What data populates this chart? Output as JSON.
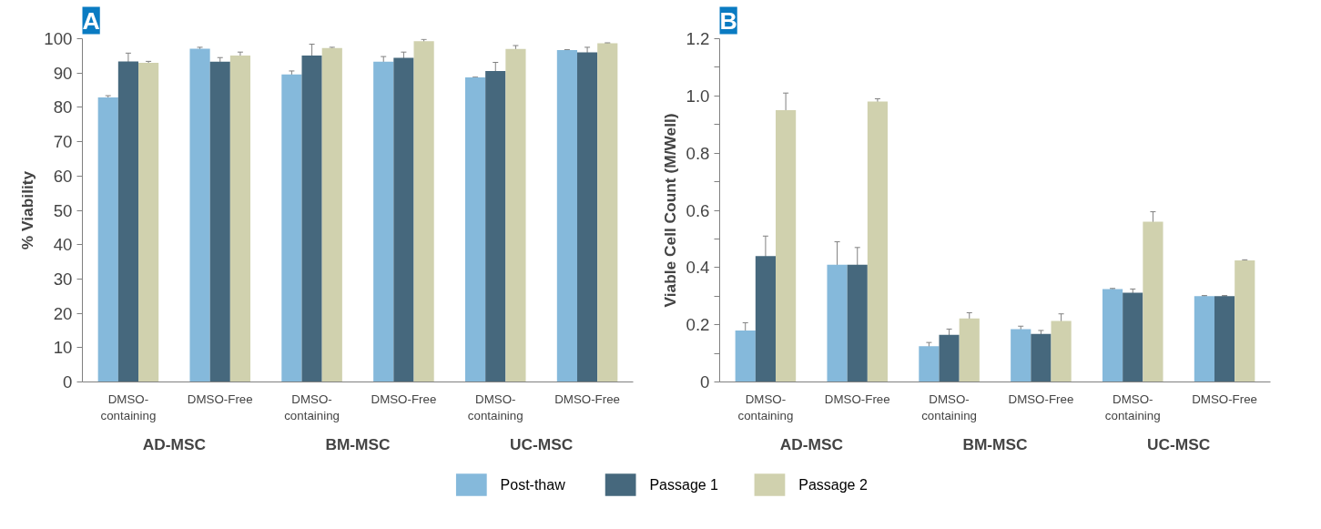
{
  "chart_data": [
    {
      "type": "bar",
      "title": "A",
      "ylabel": "% Viability",
      "categories": [
        "DMSO-\ncontaining",
        "DMSO-Free",
        "DMSO-\ncontaining",
        "DMSO-Free",
        "DMSO-\ncontaining",
        "DMSO-Free"
      ],
      "annotations": [
        "AD-MSC",
        "BM-MSC",
        "UC-MSC"
      ],
      "ylim": [
        0,
        100
      ],
      "yticks": [
        0,
        10,
        20,
        30,
        40,
        50,
        60,
        70,
        80,
        90,
        100
      ],
      "grid": false,
      "legend": "bottom",
      "series": [
        {
          "name": "Post-thaw",
          "color": "#85b9db",
          "values": [
            82.9,
            97.1,
            89.6,
            93.3,
            88.7,
            96.7
          ],
          "errors": [
            0.5,
            0.4,
            1.0,
            1.5,
            0.1,
            0.1
          ]
        },
        {
          "name": "Passage 1",
          "color": "#46687d",
          "values": [
            93.4,
            93.3,
            95.1,
            94.4,
            90.6,
            96.0
          ],
          "errors": [
            2.4,
            1.2,
            3.3,
            1.7,
            2.5,
            1.5
          ]
        },
        {
          "name": "Passage 2",
          "color": "#d0d1ae",
          "values": [
            93.0,
            95.1,
            97.3,
            99.3,
            97.0,
            98.7
          ],
          "errors": [
            0.4,
            1.0,
            0.2,
            0.5,
            1.0,
            0.1
          ]
        }
      ]
    },
    {
      "type": "bar",
      "title": "B",
      "ylabel": "Viable Cell Count (M/Well)",
      "categories": [
        "DMSO-\ncontaining",
        "DMSO-Free",
        "DMSO-\ncontaining",
        "DMSO-Free",
        "DMSO-\ncontaining",
        "DMSO-Free"
      ],
      "annotations": [
        "AD-MSC",
        "BM-MSC",
        "UC-MSC"
      ],
      "ylim": [
        0,
        1.2
      ],
      "yticks": [
        0,
        {
          "value": 0.1,
          "label": null
        },
        0.2,
        {
          "value": 0.3,
          "label": null
        },
        0.4,
        {
          "value": 0.5,
          "label": null
        },
        0.6,
        {
          "value": 0.7,
          "label": null
        },
        0.8,
        {
          "value": 0.9,
          "label": null
        },
        {
          "value": 1,
          "label": "1.0"
        },
        {
          "value": 1.1,
          "label": null
        },
        1.2
      ],
      "grid": false,
      "series": [
        {
          "color": "#85b9db",
          "values": [
            0.18,
            0.41,
            0.125,
            0.185,
            0.325,
            0.3
          ],
          "errors": [
            0.027,
            0.08,
            0.013,
            0.01,
            0.002,
            0.002
          ]
        },
        {
          "color": "#46687d",
          "values": [
            0.44,
            0.41,
            0.165,
            0.168,
            0.312,
            0.3
          ],
          "errors": [
            0.07,
            0.06,
            0.02,
            0.012,
            0.013,
            0.002
          ]
        },
        {
          "color": "#d0d1ae",
          "values": [
            0.95,
            0.98,
            0.222,
            0.213,
            0.56,
            0.425
          ],
          "errors": [
            0.06,
            0.01,
            0.02,
            0.025,
            0.035,
            0.002
          ]
        }
      ]
    }
  ]
}
